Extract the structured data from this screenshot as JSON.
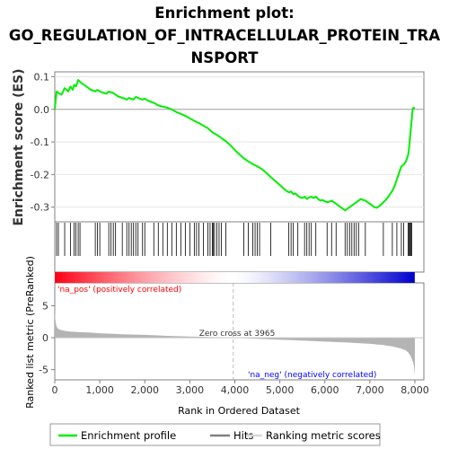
{
  "chart_data": {
    "type": "line",
    "title_lines": [
      "Enrichment plot:",
      "GO_REGULATION_OF_INTRACELLULAR_PROTEIN_TRA",
      "NSPORT"
    ],
    "es_ylabel": "Enrichment score (ES)",
    "metric_ylabel": "Ranked list metric (PreRanked)",
    "xlabel": "Rank in Ordered Dataset",
    "xlim": [
      0,
      8200
    ],
    "x_ticks": [
      0,
      1000,
      2000,
      3000,
      4000,
      5000,
      6000,
      7000,
      8000
    ],
    "x_tick_labels": [
      "0",
      "1,000",
      "2,000",
      "3,000",
      "4,000",
      "5,000",
      "6,000",
      "7,000",
      "8,000"
    ],
    "es_ylim": [
      -0.345,
      0.115
    ],
    "es_ticks": [
      0.1,
      0.0,
      -0.1,
      -0.2,
      -0.3
    ],
    "es_tick_labels": [
      "0.1",
      "0.0",
      "-0.1",
      "-0.2",
      "-0.3"
    ],
    "metric_ylim": [
      -6.6,
      8.6
    ],
    "metric_ticks": [
      5,
      0,
      -5
    ],
    "metric_tick_labels": [
      "5",
      "0",
      "-5"
    ],
    "zero_cross_rank": 3965,
    "zero_cross_label": "Zero cross at 3965",
    "pos_label": "'na_pos' (positively correlated)",
    "neg_label": "'na_neg' (negatively correlated)",
    "colors": {
      "profile": "#00ee00",
      "hits": "#000000",
      "metric_fill": "#b4b4b4",
      "pos_text": "#ff0000",
      "neg_text": "#0000ff",
      "zero_line": "#bbbbbb"
    },
    "legend_position": "bottom",
    "series": [
      {
        "name": "Enrichment profile",
        "x": [
          0,
          40,
          80,
          150,
          220,
          260,
          300,
          350,
          400,
          430,
          470,
          520,
          560,
          600,
          650,
          700,
          800,
          900,
          950,
          1000,
          1050,
          1100,
          1150,
          1200,
          1250,
          1300,
          1350,
          1400,
          1500,
          1550,
          1600,
          1650,
          1700,
          1750,
          1800,
          1850,
          1900,
          1950,
          2000,
          2050,
          2100,
          2200,
          2300,
          2400,
          2500,
          2600,
          2700,
          2800,
          2900,
          3000,
          3100,
          3200,
          3300,
          3400,
          3500,
          3600,
          3700,
          3800,
          3900,
          4000,
          4100,
          4200,
          4300,
          4400,
          4500,
          4600,
          4700,
          4800,
          4900,
          5000,
          5100,
          5200,
          5250,
          5300,
          5350,
          5400,
          5450,
          5500,
          5550,
          5600,
          5650,
          5700,
          5750,
          5800,
          5850,
          5900,
          5950,
          6000,
          6050,
          6100,
          6150,
          6200,
          6250,
          6300,
          6350,
          6400,
          6450,
          6500,
          6550,
          6600,
          6650,
          6700,
          6750,
          6800,
          6850,
          6900,
          6950,
          7000,
          7050,
          7100,
          7150,
          7200,
          7250,
          7300,
          7350,
          7400,
          7450,
          7500,
          7550,
          7600,
          7650,
          7700,
          7750,
          7800,
          7850,
          7870,
          7890,
          7910,
          7930,
          7950,
          7970,
          8000
        ],
        "values": [
          0.0,
          0.055,
          0.05,
          0.045,
          0.065,
          0.06,
          0.055,
          0.07,
          0.06,
          0.075,
          0.07,
          0.09,
          0.085,
          0.08,
          0.075,
          0.07,
          0.06,
          0.055,
          0.06,
          0.055,
          0.052,
          0.05,
          0.048,
          0.055,
          0.052,
          0.05,
          0.045,
          0.04,
          0.035,
          0.033,
          0.03,
          0.035,
          0.032,
          0.03,
          0.038,
          0.035,
          0.032,
          0.03,
          0.033,
          0.028,
          0.025,
          0.02,
          0.012,
          0.008,
          0.005,
          0.0,
          -0.008,
          -0.014,
          -0.02,
          -0.028,
          -0.035,
          -0.042,
          -0.05,
          -0.058,
          -0.07,
          -0.078,
          -0.088,
          -0.098,
          -0.11,
          -0.125,
          -0.138,
          -0.15,
          -0.16,
          -0.168,
          -0.175,
          -0.183,
          -0.195,
          -0.208,
          -0.22,
          -0.232,
          -0.245,
          -0.255,
          -0.252,
          -0.26,
          -0.258,
          -0.265,
          -0.27,
          -0.272,
          -0.268,
          -0.275,
          -0.27,
          -0.268,
          -0.272,
          -0.268,
          -0.275,
          -0.28,
          -0.278,
          -0.282,
          -0.285,
          -0.283,
          -0.28,
          -0.285,
          -0.29,
          -0.295,
          -0.3,
          -0.305,
          -0.31,
          -0.305,
          -0.3,
          -0.295,
          -0.29,
          -0.285,
          -0.28,
          -0.275,
          -0.278,
          -0.28,
          -0.285,
          -0.29,
          -0.295,
          -0.3,
          -0.302,
          -0.298,
          -0.292,
          -0.285,
          -0.278,
          -0.27,
          -0.26,
          -0.25,
          -0.235,
          -0.215,
          -0.195,
          -0.175,
          -0.17,
          -0.16,
          -0.14,
          -0.12,
          -0.09,
          -0.06,
          -0.03,
          0.0,
          0.005,
          0.003
        ]
      },
      {
        "name": "Hits",
        "x": [
          40,
          80,
          220,
          350,
          430,
          470,
          520,
          560,
          900,
          950,
          1000,
          1200,
          1250,
          1300,
          1350,
          1500,
          1600,
          1650,
          1700,
          1750,
          1800,
          1850,
          1950,
          2000,
          2200,
          2300,
          2400,
          2500,
          2600,
          2700,
          2800,
          2900,
          3000,
          3100,
          3150,
          3200,
          3300,
          3400,
          3450,
          3500,
          3520,
          3550,
          3600,
          3650,
          3700,
          3800,
          4200,
          4300,
          4400,
          4450,
          4500,
          4550,
          4800,
          5200,
          5250,
          5300,
          5400,
          5550,
          5600,
          5650,
          5700,
          5800,
          6050,
          6150,
          6250,
          6450,
          6500,
          6550,
          6600,
          6650,
          6700,
          6750,
          6900,
          7300,
          7500,
          7600,
          7700,
          7750,
          7850,
          7870,
          7890,
          7910,
          7930
        ]
      },
      {
        "name": "Ranking metric scores",
        "x": [
          0,
          10,
          30,
          60,
          100,
          200,
          300,
          500,
          800,
          1000,
          1500,
          2000,
          2500,
          3000,
          3500,
          3965,
          4500,
          5000,
          5500,
          6000,
          6500,
          7000,
          7300,
          7500,
          7700,
          7800,
          7850,
          7900,
          7930,
          7960,
          7980,
          8000
        ],
        "values": [
          5.0,
          3.0,
          2.0,
          1.5,
          1.3,
          1.1,
          1.0,
          0.9,
          0.8,
          0.7,
          0.55,
          0.45,
          0.3,
          0.2,
          0.1,
          0.0,
          -0.15,
          -0.3,
          -0.45,
          -0.6,
          -0.75,
          -0.95,
          -1.15,
          -1.35,
          -1.7,
          -2.0,
          -2.3,
          -2.8,
          -3.3,
          -3.8,
          -4.5,
          -6.0
        ]
      }
    ]
  }
}
